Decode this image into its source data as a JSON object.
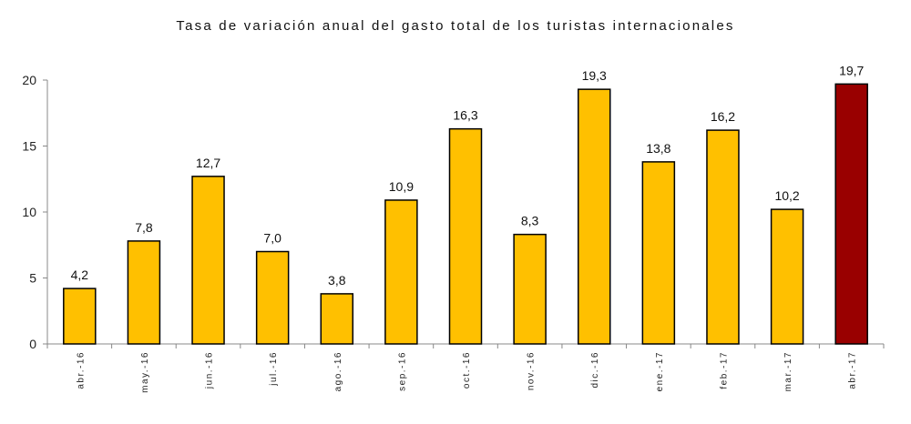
{
  "chart_data": {
    "type": "bar",
    "title": "Tasa de variación anual del gasto total de los turistas internacionales",
    "categories": [
      "abr.-16",
      "may.-16",
      "jun.-16",
      "jul.-16",
      "ago.-16",
      "sep.-16",
      "oct.-16",
      "nov.-16",
      "dic.-16",
      "ene.-17",
      "feb.-17",
      "mar.-17",
      "abr.-17"
    ],
    "values": [
      4.2,
      7.8,
      12.7,
      7.0,
      3.8,
      10.9,
      16.3,
      8.3,
      19.3,
      13.8,
      16.2,
      10.2,
      19.7
    ],
    "value_labels": [
      "4,2",
      "7,8",
      "12,7",
      "7,0",
      "3,8",
      "10,9",
      "16,3",
      "8,3",
      "19,3",
      "13,8",
      "16,2",
      "10,2",
      "19,7"
    ],
    "ylim": [
      0,
      20
    ],
    "yticks": [
      0,
      5,
      10,
      15,
      20
    ],
    "grid": false,
    "colors": {
      "bar": "#FFC000",
      "highlight_bar": "#990000",
      "bar_edge": "#000000"
    },
    "highlight_index": 12
  }
}
